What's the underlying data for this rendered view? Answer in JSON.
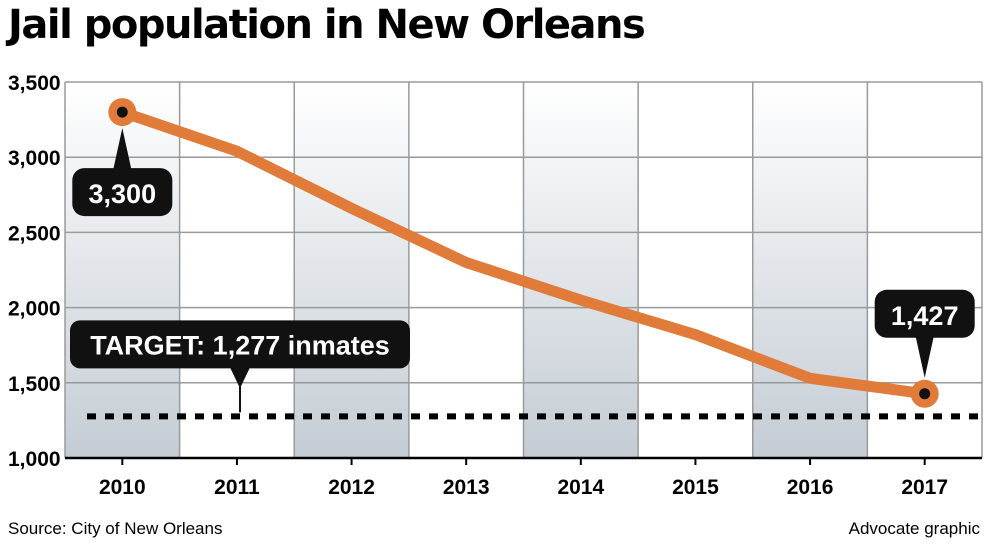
{
  "chart_data": {
    "type": "line",
    "title": "Jail population in New Orleans",
    "categories": [
      "2010",
      "2011",
      "2012",
      "2013",
      "2014",
      "2015",
      "2016",
      "2017"
    ],
    "series": [
      {
        "values": [
          3300,
          3040,
          2660,
          2300,
          2050,
          1820,
          1530,
          1427
        ]
      }
    ],
    "ylim": [
      1000,
      3500
    ],
    "yticks": [
      1000,
      1500,
      2000,
      2500,
      3000,
      3500
    ],
    "ytick_labels": [
      "1,000",
      "1,500",
      "2,000",
      "2,500",
      "3,000",
      "3,500"
    ],
    "grid": true,
    "target": {
      "value": 1277,
      "label": "TARGET: 1,277 inmates"
    },
    "annotations": [
      {
        "category_index": 0,
        "text": "3,300",
        "position": "below"
      },
      {
        "category_index": 7,
        "text": "1,427",
        "position": "above"
      }
    ],
    "line_color": "#E07B39"
  },
  "footer": {
    "source": "Source: City of New Orleans",
    "credit": "Advocate graphic"
  }
}
